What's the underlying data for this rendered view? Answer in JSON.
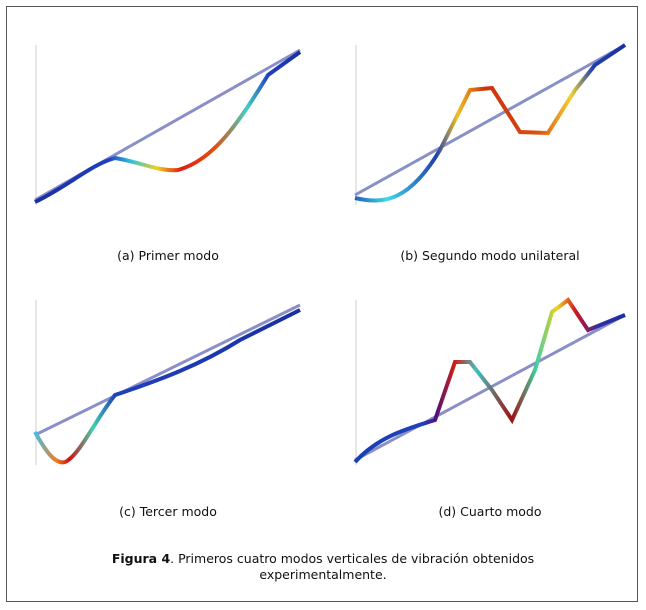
{
  "panels": [
    {
      "caption": "(a) Primer modo"
    },
    {
      "caption": "(b) Segundo modo unilateral"
    },
    {
      "caption": "(c) Tercer modo"
    },
    {
      "caption": "(d) Cuarto modo"
    }
  ],
  "figure_caption": {
    "label": "Figura 4",
    "text": ". Primeros cuatro modos verticales de vibración obtenidos experimentalmente."
  }
}
